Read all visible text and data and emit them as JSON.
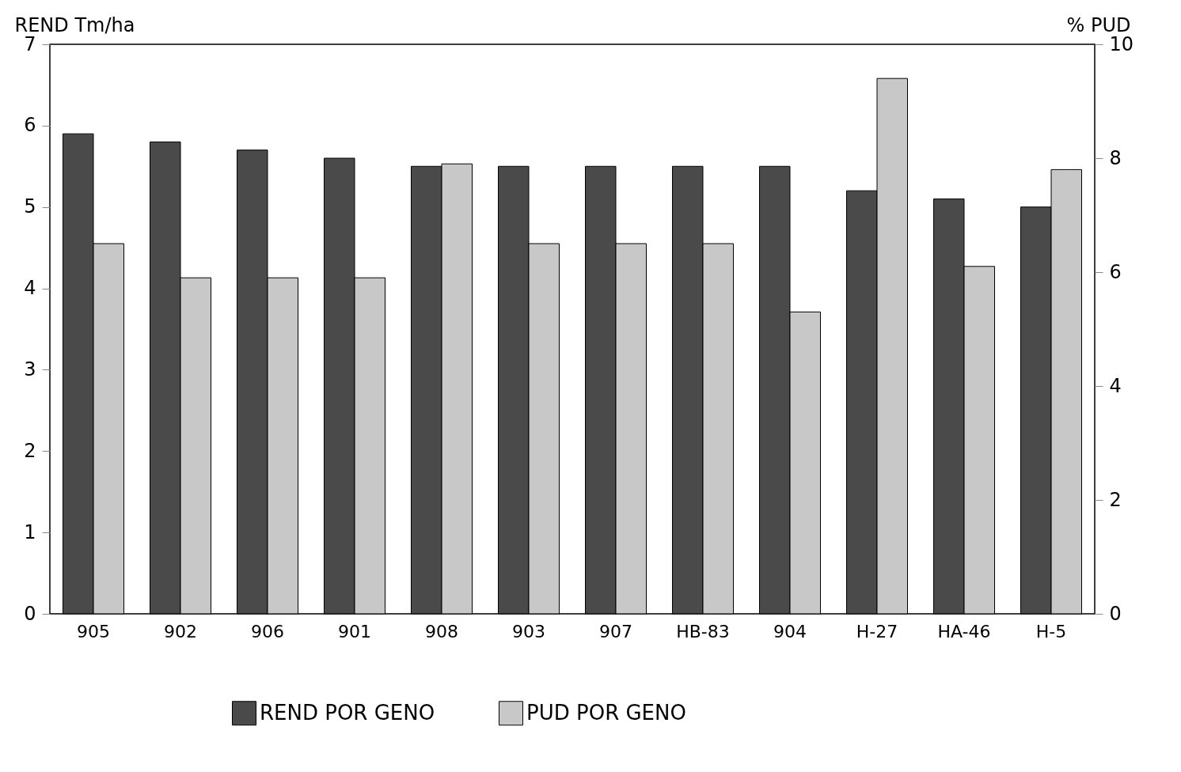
{
  "chart_data": {
    "type": "bar",
    "ylabel": "REND Tm/ha",
    "y2label": "% PUD",
    "categories": [
      "905",
      "902",
      "906",
      "901",
      "908",
      "903",
      "907",
      "HB-83",
      "904",
      "H-27",
      "HA-46",
      "H-5"
    ],
    "series": [
      {
        "name": "REND  POR GENO",
        "color": "#4a4a4a",
        "values": [
          5.9,
          5.8,
          5.7,
          5.6,
          5.5,
          5.5,
          5.5,
          5.5,
          5.5,
          5.2,
          5.1,
          5.0
        ]
      },
      {
        "name": "PUD POR GENO",
        "color": "#c8c8c8",
        "axis": "y2",
        "values": [
          6.5,
          5.9,
          5.9,
          5.9,
          7.9,
          6.5,
          6.5,
          6.5,
          5.3,
          9.4,
          6.1,
          7.8
        ]
      }
    ],
    "ylim": [
      0,
      7
    ],
    "yticks": [
      0,
      1,
      2,
      3,
      4,
      5,
      6,
      7
    ],
    "y2lim": [
      0,
      10
    ],
    "y2ticks": [
      0,
      2,
      4,
      6,
      8,
      10
    ],
    "legend": "bottom"
  }
}
